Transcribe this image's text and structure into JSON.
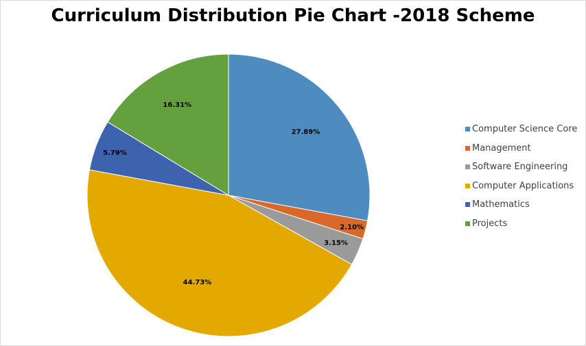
{
  "chart_data": {
    "type": "pie",
    "title": "Curriculum Distribution Pie Chart -2018 Scheme",
    "legend_position": "right",
    "start_angle_deg": 0,
    "direction": "clockwise",
    "slices": [
      {
        "name": "Computer Science Core",
        "value": 27.89,
        "label": "27.89%",
        "color": "#4E8BBF"
      },
      {
        "name": "Management",
        "value": 2.1,
        "label": "2.10%",
        "color": "#D9692A"
      },
      {
        "name": "Software Engineering",
        "value": 3.15,
        "label": "3.15%",
        "color": "#9A9A9A"
      },
      {
        "name": "Computer Applications",
        "value": 44.73,
        "label": "44.73%",
        "color": "#E3A900"
      },
      {
        "name": "Mathematics",
        "value": 5.79,
        "label": "5.79%",
        "color": "#3D62AE"
      },
      {
        "name": "Projects",
        "value": 16.31,
        "label": "16.31%",
        "color": "#64A03E"
      }
    ]
  }
}
